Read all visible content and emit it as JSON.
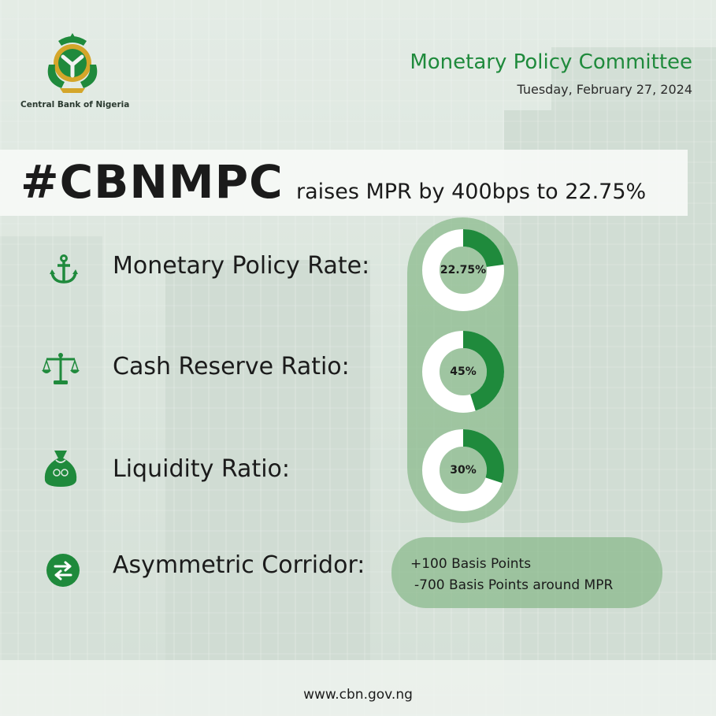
{
  "brand": {
    "org_name": "Central Bank of Nigeria",
    "accent": "#1f8a3c",
    "gold": "#d4a62a"
  },
  "header": {
    "title": "Monetary Policy Committee",
    "date": "Tuesday, February 27, 2024"
  },
  "headline": {
    "hashtag": "#CBNMPC",
    "text": "raises MPR by 400bps to 22.75%"
  },
  "metrics": [
    {
      "icon": "anchor-icon",
      "label": "Monetary Policy Rate:",
      "value_text": "22.75%",
      "percent": 22.75
    },
    {
      "icon": "scales-icon",
      "label": "Cash Reserve Ratio:",
      "value_text": "45%",
      "percent": 45
    },
    {
      "icon": "money-bag-icon",
      "label": "Liquidity Ratio:",
      "value_text": "30%",
      "percent": 30
    }
  ],
  "corridor": {
    "icon": "exchange-arrows-icon",
    "label": "Asymmetric Corridor:",
    "line1": "+100 Basis Points",
    "line2": "-700 Basis Points around MPR"
  },
  "footer": {
    "url": "www.cbn.gov.ng"
  }
}
